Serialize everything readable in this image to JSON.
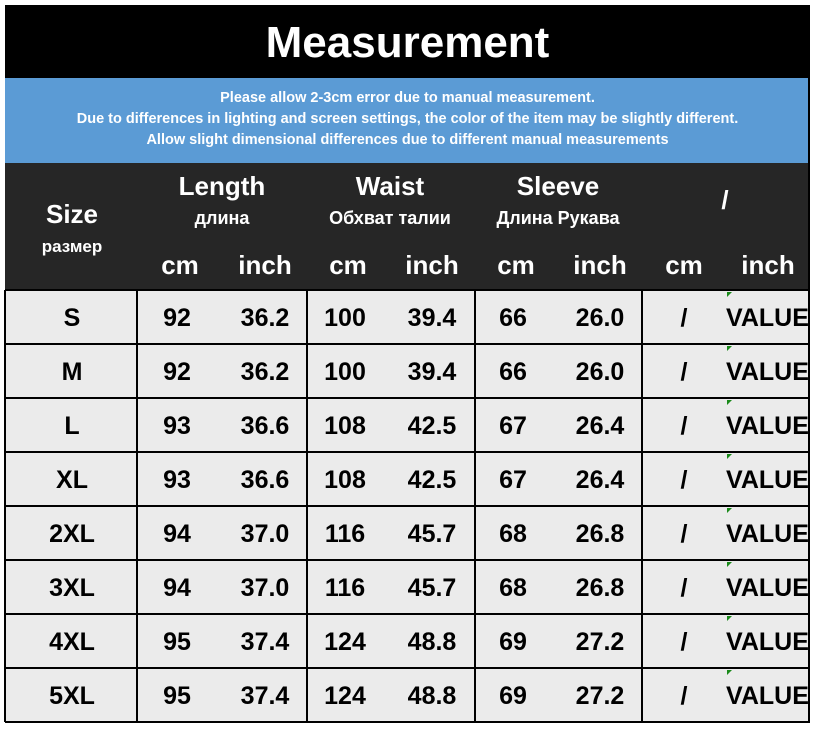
{
  "title": "Measurement",
  "notes": [
    "Please allow 2-3cm error due to manual measurement.",
    "Due to differences in lighting and screen settings, the color of the item may be slightly different.",
    "Allow slight dimensional differences due to different manual measurements"
  ],
  "header": {
    "size": "Size",
    "size_sub": "размер",
    "groups": [
      {
        "name": "Length",
        "sub": "длина",
        "units": [
          "cm",
          "inch"
        ]
      },
      {
        "name": "Waist",
        "sub": "Обхват талии",
        "units": [
          "cm",
          "inch"
        ]
      },
      {
        "name": "Sleeve",
        "sub": "Длина Рукава",
        "units": [
          "cm",
          "inch"
        ]
      },
      {
        "name": "/",
        "units": [
          "cm",
          "inch"
        ]
      }
    ]
  },
  "table": {
    "rows": [
      [
        "S",
        "92",
        "36.2",
        "100",
        "39.4",
        "66",
        "26.0",
        "/",
        "VALUE"
      ],
      [
        "M",
        "92",
        "36.2",
        "100",
        "39.4",
        "66",
        "26.0",
        "/",
        "VALUE"
      ],
      [
        "L",
        "93",
        "36.6",
        "108",
        "42.5",
        "67",
        "26.4",
        "/",
        "VALUE"
      ],
      [
        "XL",
        "93",
        "36.6",
        "108",
        "42.5",
        "67",
        "26.4",
        "/",
        "VALUE"
      ],
      [
        "2XL",
        "94",
        "37.0",
        "116",
        "45.7",
        "68",
        "26.8",
        "/",
        "VALUE"
      ],
      [
        "3XL",
        "94",
        "37.0",
        "116",
        "45.7",
        "68",
        "26.8",
        "/",
        "VALUE"
      ],
      [
        "4XL",
        "95",
        "37.4",
        "124",
        "48.8",
        "69",
        "27.2",
        "/",
        "VALUE"
      ],
      [
        "5XL",
        "95",
        "37.4",
        "124",
        "48.8",
        "69",
        "27.2",
        "/",
        "VALUE"
      ]
    ]
  }
}
